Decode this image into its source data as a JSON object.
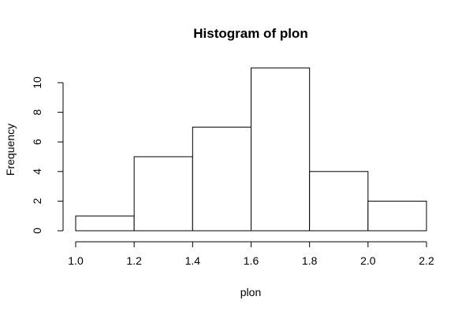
{
  "chart_data": {
    "type": "bar",
    "title": "Histogram of plon",
    "xlabel": "plon",
    "ylabel": "Frequency",
    "bins": [
      {
        "start": 1.0,
        "end": 1.2,
        "count": 1
      },
      {
        "start": 1.2,
        "end": 1.4,
        "count": 5
      },
      {
        "start": 1.4,
        "end": 1.6,
        "count": 7
      },
      {
        "start": 1.6,
        "end": 1.8,
        "count": 11
      },
      {
        "start": 1.8,
        "end": 2.0,
        "count": 4
      },
      {
        "start": 2.0,
        "end": 2.2,
        "count": 2
      }
    ],
    "xlim": [
      1.0,
      2.2
    ],
    "ylim": [
      0,
      11
    ],
    "xticks": [
      "1.0",
      "1.2",
      "1.4",
      "1.6",
      "1.8",
      "2.0",
      "2.2"
    ],
    "yticks": [
      "0",
      "2",
      "4",
      "6",
      "8",
      "10"
    ],
    "grid": false,
    "legend": "none",
    "colors": {
      "bar_fill": "#ffffff",
      "bar_stroke": "#000000"
    }
  }
}
